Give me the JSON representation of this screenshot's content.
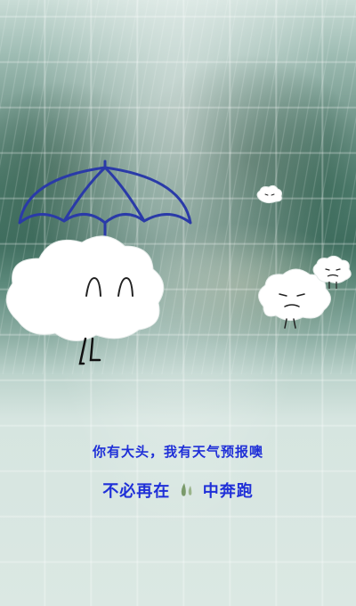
{
  "caption": {
    "line1": "你有大头，我有天气预报噢",
    "line2_before": "不必再在",
    "line2_after": "中奔跑",
    "line2_icon": "raindrops-icon"
  },
  "colors": {
    "caption_text": "#1f2fd8",
    "umbrella_stroke": "#2a3aa8",
    "raindrop_icon": "#7a9a6a"
  }
}
